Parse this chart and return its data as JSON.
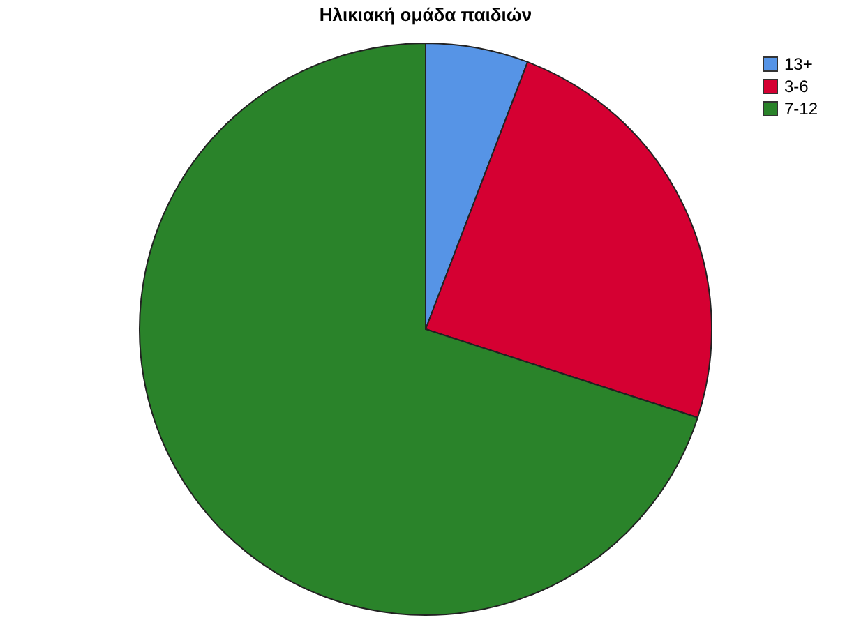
{
  "chart_data": {
    "type": "pie",
    "title": "Ηλικιακή ομάδα παιδιών",
    "categories": [
      "13+",
      "3-6",
      "7-12"
    ],
    "values": [
      5.8,
      24.2,
      70
    ],
    "colors": [
      "#5694e6",
      "#d50032",
      "#2a832a"
    ],
    "legend": "top right"
  }
}
